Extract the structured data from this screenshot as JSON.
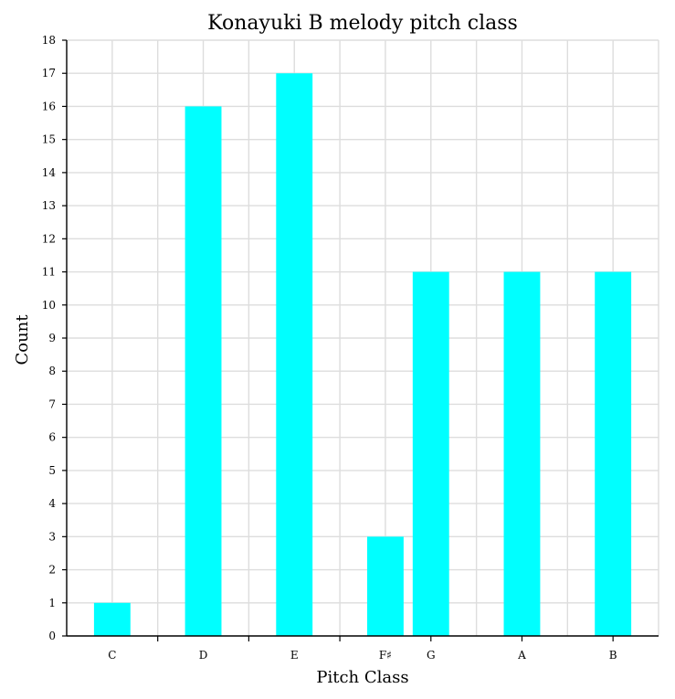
{
  "chart_data": {
    "type": "bar",
    "title": "Konayuki B melody pitch class",
    "xlabel": "Pitch Class",
    "ylabel": "Count",
    "ylim": [
      0,
      18
    ],
    "y_ticks": [
      0,
      1,
      2,
      3,
      4,
      5,
      6,
      7,
      8,
      9,
      10,
      11,
      12,
      13,
      14,
      15,
      16,
      17,
      18
    ],
    "categories": [
      "C",
      "D",
      "E",
      "F♯",
      "G",
      "A",
      "B"
    ],
    "x_positions": [
      0,
      2,
      4,
      6,
      7,
      9,
      11
    ],
    "xlim": [
      -1,
      12
    ],
    "x_ticks": [
      0,
      1,
      2,
      3,
      4,
      5,
      6,
      7,
      8,
      9,
      10,
      11,
      12
    ],
    "values": [
      1,
      16,
      17,
      3,
      11,
      11,
      11
    ],
    "bar_color": "#00ffff",
    "grid": true
  }
}
